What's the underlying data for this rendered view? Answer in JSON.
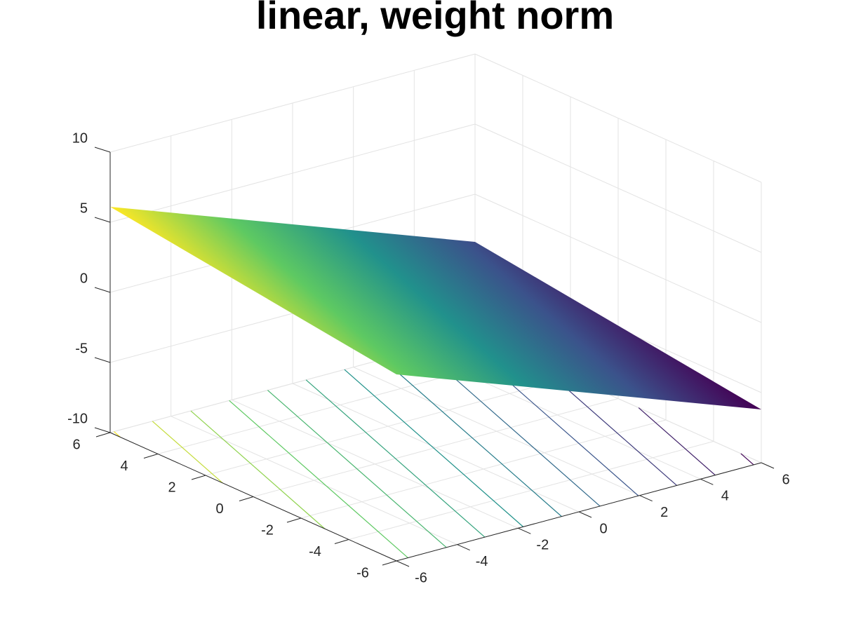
{
  "chart_data": {
    "type": "surface",
    "title": "linear, weight norm",
    "x": [
      -6,
      6
    ],
    "y": [
      -6,
      6
    ],
    "z": [
      [
        3.3,
        -6.2
      ],
      [
        6.1,
        -3.4
      ]
    ],
    "xlim": [
      -6,
      6
    ],
    "ylim": [
      -6,
      6
    ],
    "zlim": [
      -10,
      10
    ],
    "xticks": [
      -6,
      -4,
      -2,
      0,
      2,
      4,
      6
    ],
    "yticks": [
      -6,
      -4,
      -2,
      0,
      2,
      4,
      6
    ],
    "zticks": [
      -10,
      -5,
      0,
      5,
      10
    ],
    "contour_levels": [
      -6,
      -5,
      -4,
      -3,
      -2,
      -1,
      0,
      1,
      2,
      3,
      4,
      5,
      6
    ],
    "colormap": [
      "#440154",
      "#3b528b",
      "#21918c",
      "#5ec962",
      "#fde725"
    ],
    "grid": true
  }
}
